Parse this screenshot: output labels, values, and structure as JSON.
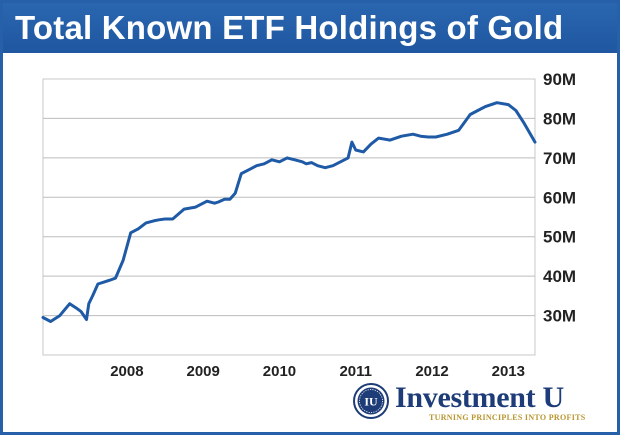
{
  "banner": {
    "title": "Total Known ETF Holdings of Gold"
  },
  "logo": {
    "seal_letters": "IU",
    "name": "Investment U",
    "tagline": "TURNING PRINCIPLES INTO PROFITS",
    "colors": {
      "name": "#1d3c78",
      "tagline": "#b8962e",
      "seal": "#1d3c78"
    }
  },
  "colors": {
    "banner": "#2660a8",
    "line": "#1f5aa6",
    "grid": "#bdbdbd",
    "plot_border": "#c8c8c8"
  },
  "chart_data": {
    "type": "line",
    "title": "Total Known ETF Holdings of Gold",
    "xlabel": "",
    "ylabel": "",
    "xlim": [
      2007.4,
      2013.85
    ],
    "ylim": [
      20,
      90
    ],
    "grid": true,
    "legend": "none",
    "x_ticks": [
      {
        "value": 2008.5,
        "label": "2008"
      },
      {
        "value": 2009.5,
        "label": "2009"
      },
      {
        "value": 2010.5,
        "label": "2010"
      },
      {
        "value": 2011.5,
        "label": "2011"
      },
      {
        "value": 2012.5,
        "label": "2012"
      },
      {
        "value": 2013.5,
        "label": "2013"
      }
    ],
    "y_ticks": [
      {
        "value": 30,
        "label": "30M"
      },
      {
        "value": 40,
        "label": "40M"
      },
      {
        "value": 50,
        "label": "50M"
      },
      {
        "value": 60,
        "label": "60M"
      },
      {
        "value": 70,
        "label": "70M"
      },
      {
        "value": 80,
        "label": "80M"
      },
      {
        "value": 90,
        "label": "90M"
      }
    ],
    "series": [
      {
        "x": [
          2007.4,
          2007.5,
          2007.62,
          2007.75,
          2007.83,
          2007.9,
          2007.97,
          2008.0,
          2008.05,
          2008.12,
          2008.2,
          2008.28,
          2008.35,
          2008.45,
          2008.55,
          2008.65,
          2008.75,
          2008.85,
          2008.92,
          2009.0,
          2009.1,
          2009.25,
          2009.4,
          2009.55,
          2009.65,
          2009.7,
          2009.78,
          2009.85,
          2009.92,
          2010.0,
          2010.1,
          2010.2,
          2010.3,
          2010.4,
          2010.5,
          2010.6,
          2010.7,
          2010.8,
          2010.85,
          2010.92,
          2011.0,
          2011.1,
          2011.2,
          2011.3,
          2011.4,
          2011.45,
          2011.5,
          2011.6,
          2011.7,
          2011.8,
          2011.95,
          2012.1,
          2012.25,
          2012.35,
          2012.45,
          2012.55,
          2012.7,
          2012.85,
          2013.0,
          2013.1,
          2013.2,
          2013.35,
          2013.5,
          2013.6,
          2013.7,
          2013.85
        ],
        "y": [
          29.5,
          28.5,
          30,
          33,
          32,
          31,
          29,
          33,
          35,
          38,
          38.5,
          39,
          39.5,
          44,
          51,
          52,
          53.5,
          54,
          54.3,
          54.5,
          54.5,
          57,
          57.5,
          59,
          58.5,
          58.8,
          59.5,
          59.5,
          61,
          66,
          67,
          68,
          68.5,
          69.5,
          69,
          70,
          69.5,
          69,
          68.5,
          68.8,
          68,
          67.5,
          68,
          69,
          70,
          74,
          72,
          71.5,
          73.5,
          75,
          74.5,
          75.5,
          76,
          75.5,
          75.3,
          75.3,
          76,
          77,
          81,
          82,
          83,
          84,
          83.5,
          82,
          79,
          74
        ]
      }
    ]
  }
}
